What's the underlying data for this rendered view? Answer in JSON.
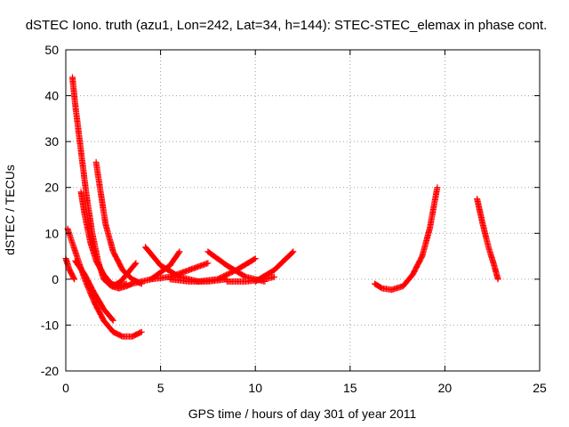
{
  "chart_data": {
    "type": "scatter",
    "title": "dSTEC Iono. truth (azu1, Lon=242, Lat=34, h=144): STEC-STEC_elemax in phase cont.",
    "xlabel": "GPS time / hours of day 301 of year 2011",
    "ylabel": "dSTEC  / TECUs",
    "xlim": [
      0,
      25
    ],
    "ylim": [
      -20,
      50
    ],
    "xticks": [
      0,
      5,
      10,
      15,
      20,
      25
    ],
    "yticks": [
      -20,
      -10,
      0,
      10,
      20,
      30,
      40,
      50
    ],
    "x_tick_labels": [
      "0",
      "5",
      "10",
      "15",
      "20",
      "25"
    ],
    "y_tick_labels": [
      "-20",
      "-10",
      "0",
      "10",
      "20",
      "30",
      "40",
      "50"
    ],
    "grid": true,
    "marker": "+",
    "color": "#ff0000",
    "series": [
      {
        "x": [
          0.35,
          0.5,
          0.8,
          1.1,
          1.4,
          1.7,
          2.0,
          2.4,
          2.8,
          3.2,
          3.5
        ],
        "y": [
          44,
          38,
          28,
          18,
          10,
          4,
          0,
          -1.5,
          -2,
          -1.5,
          -1
        ]
      },
      {
        "x": [
          0.8,
          1.0,
          1.3,
          1.6,
          2.0,
          2.4,
          2.8,
          3.2
        ],
        "y": [
          19,
          14,
          8,
          4,
          1,
          -1,
          -1.5,
          -1
        ]
      },
      {
        "x": [
          1.6,
          1.8,
          2.1,
          2.5,
          3.0,
          3.5,
          4.0
        ],
        "y": [
          25.5,
          20,
          12,
          6,
          2,
          0,
          -1
        ]
      },
      {
        "x": [
          0.1,
          0.5,
          1.0,
          1.5,
          2.0,
          2.5,
          3.0,
          3.5,
          4.0
        ],
        "y": [
          11,
          6,
          0,
          -5,
          -9,
          -11.5,
          -12.5,
          -12.5,
          -11.5
        ]
      },
      {
        "x": [
          0.0,
          0.2,
          0.45
        ],
        "y": [
          4.5,
          2,
          0
        ]
      },
      {
        "x": [
          0.5,
          1.0,
          1.5,
          2.0,
          2.5
        ],
        "y": [
          4,
          1,
          -3,
          -6.5,
          -9
        ]
      },
      {
        "x": [
          2.5,
          2.9,
          3.3,
          3.7
        ],
        "y": [
          -1.5,
          -0.5,
          1.5,
          3.5
        ]
      },
      {
        "x": [
          4.2,
          5.0,
          6.0,
          7.0
        ],
        "y": [
          7,
          3,
          0.5,
          -0.5
        ]
      },
      {
        "x": [
          3.5,
          4.5,
          5.5,
          6.0
        ],
        "y": [
          -1,
          0,
          3,
          6
        ]
      },
      {
        "x": [
          4.5,
          5.5,
          6.5,
          7.5
        ],
        "y": [
          0,
          0.5,
          2,
          3.5
        ]
      },
      {
        "x": [
          5.5,
          6.5,
          7.5,
          8.5
        ],
        "y": [
          0,
          -0.5,
          -0.5,
          0
        ]
      },
      {
        "x": [
          7.5,
          8.5,
          9.5,
          10.5
        ],
        "y": [
          6,
          3,
          0.5,
          -0.5
        ]
      },
      {
        "x": [
          7.0,
          8.0,
          9.0,
          10.0
        ],
        "y": [
          -0.5,
          0,
          2,
          4.5
        ]
      },
      {
        "x": [
          8.5,
          9.5,
          10.5,
          11.0
        ],
        "y": [
          -0.5,
          -0.5,
          0,
          0.5
        ]
      },
      {
        "x": [
          10.0,
          11.0,
          12.0
        ],
        "y": [
          -0.5,
          2,
          6
        ]
      },
      {
        "x": [
          16.3,
          16.7,
          17.2,
          17.8,
          18.3,
          18.8,
          19.2,
          19.6
        ],
        "y": [
          -1,
          -2,
          -2.3,
          -1.5,
          1,
          5,
          11,
          20
        ]
      },
      {
        "x": [
          21.7,
          22.0,
          22.3,
          22.6,
          22.8
        ],
        "y": [
          17.5,
          12,
          7,
          3,
          0
        ]
      }
    ]
  }
}
